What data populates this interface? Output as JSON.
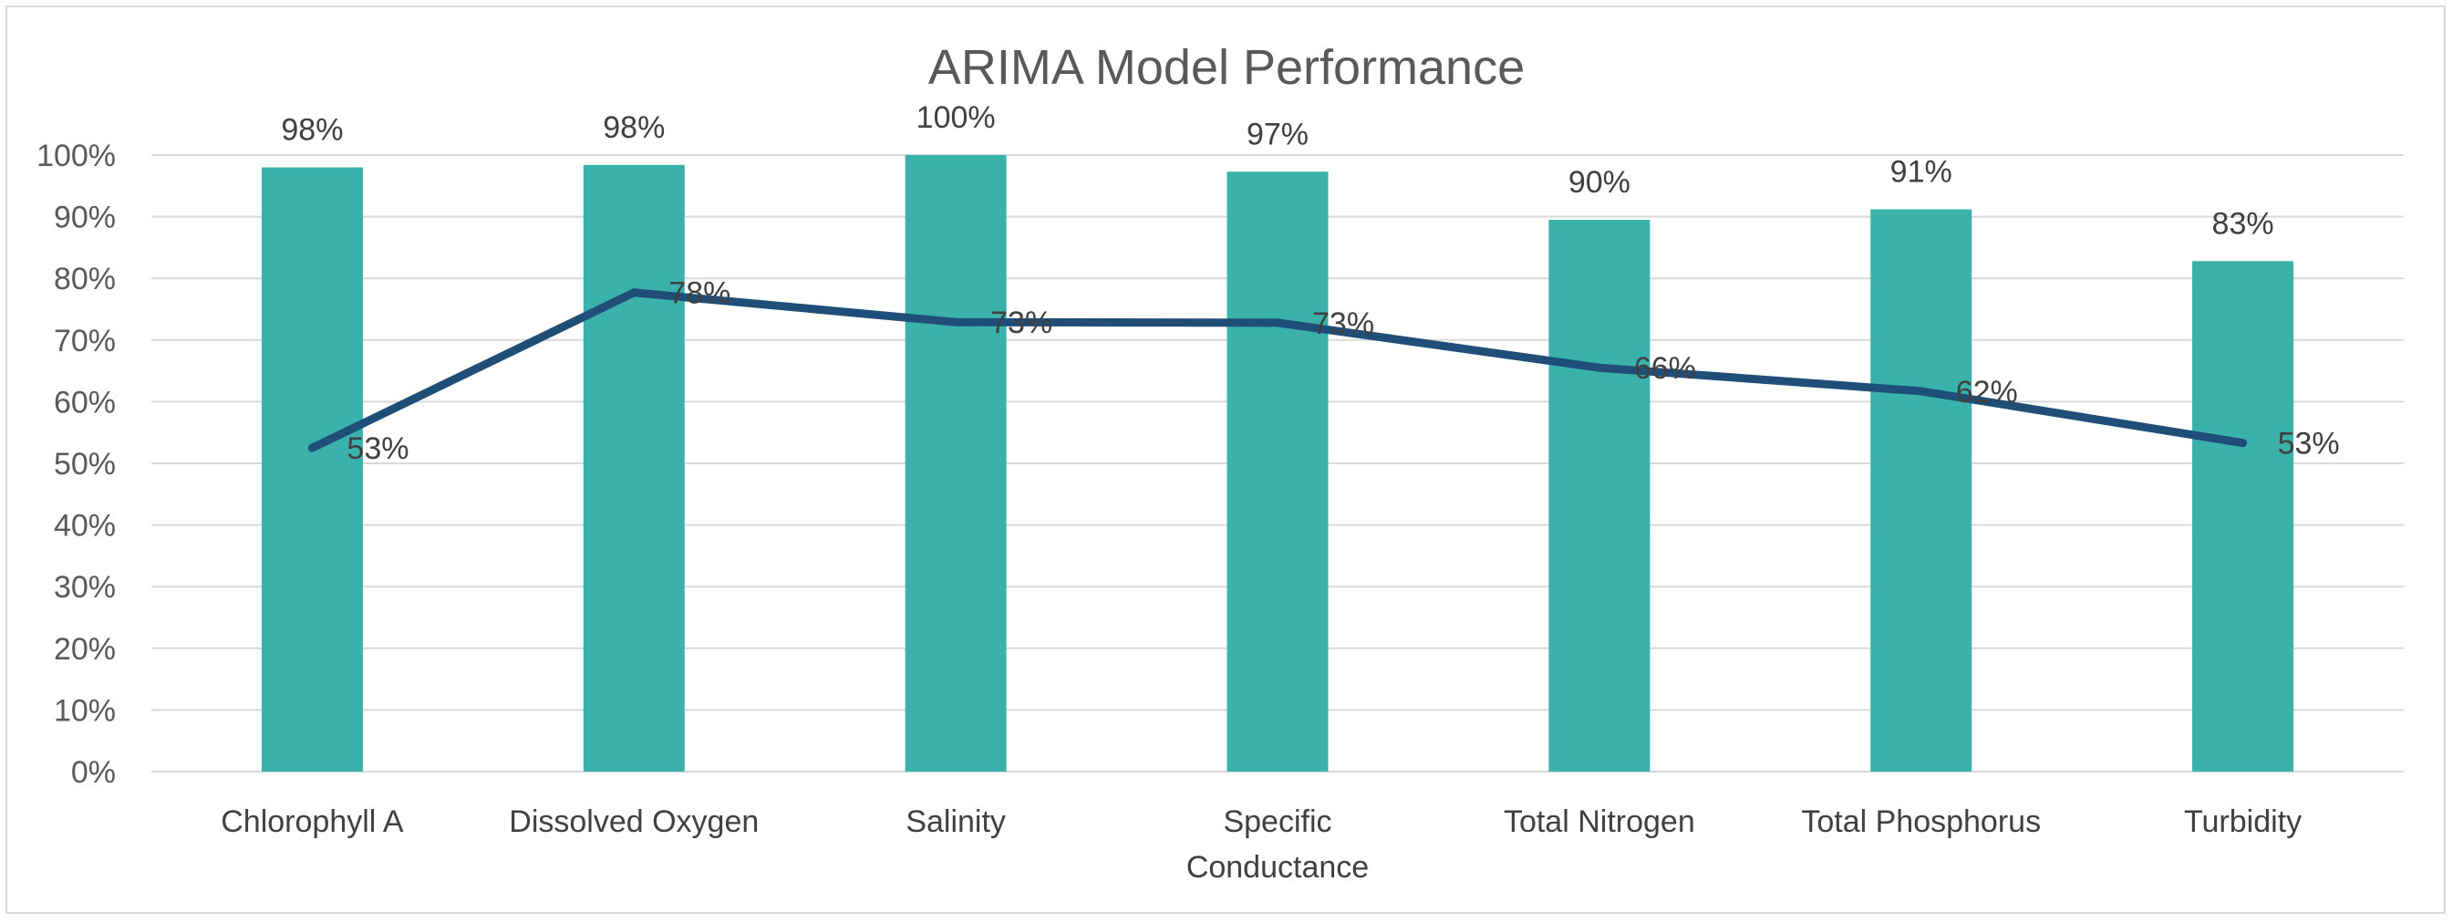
{
  "chart_data": {
    "type": "bar",
    "title": "ARIMA Model Performance",
    "xlabel": "",
    "ylabel": "",
    "ylim": [
      0,
      100
    ],
    "y_ticks": [
      "0%",
      "10%",
      "20%",
      "30%",
      "40%",
      "50%",
      "60%",
      "70%",
      "80%",
      "90%",
      "100%"
    ],
    "grid": true,
    "categories": [
      [
        "Chlorophyll A"
      ],
      [
        "Dissolved Oxygen"
      ],
      [
        "Salinity"
      ],
      [
        "Specific",
        "Conductance"
      ],
      [
        "Total Nitrogen"
      ],
      [
        "Total Phosphorus"
      ],
      [
        "Turbidity"
      ]
    ],
    "series": [
      {
        "kind": "bar",
        "color": "#3AB2AB",
        "values": [
          98,
          98.4,
          100,
          97.3,
          89.5,
          91.2,
          82.8
        ],
        "labels": [
          "98%",
          "98%",
          "100%",
          "97%",
          "90%",
          "91%",
          "83%"
        ]
      },
      {
        "kind": "line",
        "color": "#1F4E79",
        "values": [
          52.5,
          77.7,
          72.9,
          72.8,
          65.5,
          61.7,
          53.3
        ],
        "labels": [
          "53%",
          "78%",
          "73%",
          "73%",
          "66%",
          "62%",
          "53%"
        ]
      }
    ]
  }
}
